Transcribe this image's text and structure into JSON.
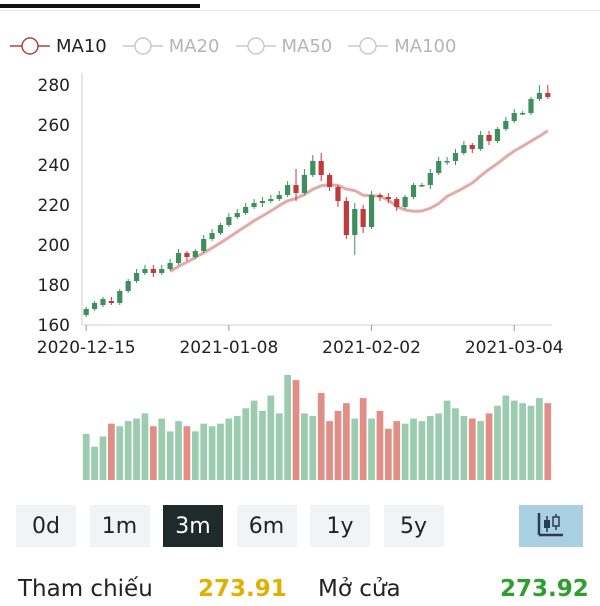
{
  "legend": [
    {
      "label": "MA10",
      "active": true,
      "color": "#b3403c"
    },
    {
      "label": "MA20",
      "active": false,
      "color": "#c8c8c8"
    },
    {
      "label": "MA50",
      "active": false,
      "color": "#c8c8c8"
    },
    {
      "label": "MA100",
      "active": false,
      "color": "#c8c8c8"
    }
  ],
  "periods": [
    "0d",
    "1m",
    "3m",
    "6m",
    "1y",
    "5y"
  ],
  "active_period": "3m",
  "chart_toggle_icon": "candlestick-icon",
  "info": {
    "ref_label": "Tham chiếu",
    "ref_value": "273.91",
    "ref_color": "#e0b000",
    "open_label": "Mở cửa",
    "open_value": "273.92",
    "open_color": "#2e9e2e"
  },
  "colors": {
    "up": "#3f8f5e",
    "down": "#c0393b",
    "up_volume": "#9cccaf",
    "down_volume": "#e08e86",
    "ma10": "#e3aaa8"
  },
  "chart_data": {
    "type": "candlestick",
    "ylim": [
      160,
      280
    ],
    "yticks": [
      160,
      180,
      200,
      220,
      240,
      260,
      280
    ],
    "xticks": [
      "2020-12-15",
      "2021-01-08",
      "2021-02-02",
      "2021-03-04"
    ],
    "xtick_indices": [
      0,
      17,
      34,
      51
    ],
    "candles": [
      [
        165,
        168,
        164,
        169
      ],
      [
        168,
        171,
        167,
        172
      ],
      [
        170,
        173,
        169,
        174
      ],
      [
        172,
        171,
        170,
        174
      ],
      [
        171,
        177,
        170,
        178
      ],
      [
        177,
        182,
        176,
        183
      ],
      [
        182,
        186,
        181,
        188
      ],
      [
        186,
        188,
        185,
        190
      ],
      [
        188,
        186,
        184,
        190
      ],
      [
        186,
        188,
        185,
        190
      ],
      [
        188,
        191,
        187,
        193
      ],
      [
        191,
        196,
        190,
        198
      ],
      [
        196,
        194,
        192,
        197
      ],
      [
        194,
        197,
        193,
        198
      ],
      [
        197,
        203,
        196,
        205
      ],
      [
        203,
        206,
        202,
        208
      ],
      [
        206,
        210,
        205,
        211
      ],
      [
        210,
        214,
        209,
        216
      ],
      [
        214,
        216,
        213,
        218
      ],
      [
        216,
        219,
        215,
        221
      ],
      [
        219,
        221,
        218,
        223
      ],
      [
        221,
        222,
        219,
        224
      ],
      [
        222,
        223,
        221,
        225
      ],
      [
        223,
        225,
        222,
        227
      ],
      [
        225,
        230,
        224,
        232
      ],
      [
        230,
        226,
        222,
        238
      ],
      [
        226,
        235,
        225,
        238
      ],
      [
        235,
        242,
        234,
        245
      ],
      [
        242,
        235,
        232,
        246
      ],
      [
        235,
        229,
        227,
        236
      ],
      [
        229,
        222,
        219,
        230
      ],
      [
        222,
        205,
        203,
        224
      ],
      [
        205,
        218,
        195,
        221
      ],
      [
        218,
        209,
        206,
        220
      ],
      [
        209,
        225,
        208,
        227
      ],
      [
        225,
        224,
        222,
        226
      ],
      [
        224,
        223,
        221,
        226
      ],
      [
        223,
        219,
        217,
        224
      ],
      [
        219,
        224,
        218,
        225
      ],
      [
        224,
        230,
        223,
        231
      ],
      [
        230,
        230,
        229,
        231
      ],
      [
        230,
        236,
        228,
        238
      ],
      [
        236,
        242,
        235,
        244
      ],
      [
        242,
        242,
        240,
        244
      ],
      [
        242,
        246,
        240,
        248
      ],
      [
        246,
        250,
        245,
        252
      ],
      [
        250,
        248,
        246,
        251
      ],
      [
        248,
        255,
        247,
        257
      ],
      [
        255,
        252,
        250,
        257
      ],
      [
        252,
        258,
        251,
        259
      ],
      [
        258,
        262,
        257,
        264
      ],
      [
        262,
        266,
        261,
        268
      ],
      [
        266,
        266,
        265,
        267
      ],
      [
        266,
        273,
        265,
        274
      ],
      [
        273,
        276,
        272,
        280
      ],
      [
        276,
        274,
        273,
        280
      ]
    ],
    "ma10": [
      null,
      null,
      null,
      null,
      null,
      null,
      null,
      null,
      null,
      null,
      186.8,
      189.3,
      191.4,
      193.7,
      196.1,
      198.5,
      201.1,
      203.8,
      206.6,
      209.4,
      212.1,
      214.5,
      217.0,
      219.7,
      222.1,
      223.3,
      225.2,
      227.9,
      229.6,
      230.1,
      229.8,
      228.0,
      227.2,
      224.9,
      224.6,
      224.4,
      222.5,
      219.3,
      217.5,
      216.9,
      217.0,
      218.4,
      220.7,
      224.3,
      226.4,
      228.6,
      231.0,
      234.6,
      237.9,
      240.7,
      244.0,
      247.0,
      249.4,
      251.9,
      254.4,
      257.1
    ],
    "volume": [
      18,
      13,
      17,
      22,
      21,
      23,
      24,
      26,
      21,
      24,
      19,
      23,
      21,
      19,
      22,
      21,
      22,
      24,
      25,
      28,
      31,
      27,
      33,
      26,
      41,
      39,
      26,
      25,
      34,
      23,
      27,
      30,
      24,
      32,
      24,
      27,
      20,
      23,
      22,
      24,
      23,
      25,
      26,
      31,
      28,
      25,
      24,
      23,
      26,
      29,
      33,
      31,
      30,
      29,
      32,
      30
    ]
  }
}
